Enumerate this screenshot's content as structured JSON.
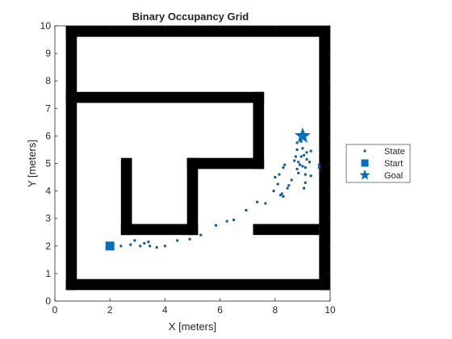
{
  "chart_data": {
    "type": "scatter",
    "title": "Binary Occupancy Grid",
    "xlabel": "X [meters]",
    "ylabel": "Y [meters]",
    "xlim": [
      0,
      10
    ],
    "ylim": [
      0,
      10
    ],
    "xticks": [
      "0",
      "2",
      "4",
      "6",
      "8",
      "10"
    ],
    "yticks": [
      "0",
      "1",
      "2",
      "3",
      "4",
      "5",
      "6",
      "7",
      "8",
      "9",
      "10"
    ],
    "grid": false,
    "legend_position": "outside-right",
    "obstacles": [
      {
        "x0": 0.4,
        "x1": 10,
        "y0": 9.6,
        "y1": 10
      },
      {
        "x0": 0.4,
        "x1": 10,
        "y0": 0.4,
        "y1": 0.8
      },
      {
        "x0": 0.4,
        "x1": 0.8,
        "y0": 0.4,
        "y1": 10
      },
      {
        "x0": 9.6,
        "x1": 10,
        "y0": 0.4,
        "y1": 10
      },
      {
        "x0": 0.4,
        "x1": 7.6,
        "y0": 7.2,
        "y1": 7.6
      },
      {
        "x0": 7.2,
        "x1": 7.6,
        "y0": 4.8,
        "y1": 7.6
      },
      {
        "x0": 4.8,
        "x1": 7.6,
        "y0": 4.8,
        "y1": 5.2
      },
      {
        "x0": 4.8,
        "x1": 5.2,
        "y0": 2.4,
        "y1": 5.2
      },
      {
        "x0": 2.4,
        "x1": 5.2,
        "y0": 2.4,
        "y1": 2.8
      },
      {
        "x0": 2.4,
        "x1": 2.8,
        "y0": 2.4,
        "y1": 5.2
      },
      {
        "x0": 7.2,
        "x1": 9.6,
        "y0": 2.4,
        "y1": 2.8
      }
    ],
    "series": [
      {
        "name": "State",
        "marker": "square-dot",
        "color": "#0e5a96",
        "points": [
          [
            2.4,
            2.0
          ],
          [
            2.75,
            2.05
          ],
          [
            2.9,
            2.2
          ],
          [
            3.1,
            2.0
          ],
          [
            3.25,
            2.1
          ],
          [
            3.4,
            2.15
          ],
          [
            3.45,
            2.0
          ],
          [
            3.7,
            1.95
          ],
          [
            4.0,
            2.0
          ],
          [
            4.45,
            2.2
          ],
          [
            4.9,
            2.25
          ],
          [
            5.3,
            2.4
          ],
          [
            5.85,
            2.75
          ],
          [
            6.25,
            2.9
          ],
          [
            6.5,
            2.95
          ],
          [
            6.95,
            3.3
          ],
          [
            7.35,
            3.6
          ],
          [
            7.65,
            3.55
          ],
          [
            7.95,
            4.0
          ],
          [
            8.0,
            4.5
          ],
          [
            8.1,
            4.25
          ],
          [
            8.15,
            4.6
          ],
          [
            8.2,
            3.85
          ],
          [
            8.25,
            3.9
          ],
          [
            8.3,
            4.85
          ],
          [
            8.3,
            3.8
          ],
          [
            8.35,
            4.95
          ],
          [
            8.45,
            4.1
          ],
          [
            8.5,
            4.2
          ],
          [
            8.6,
            4.4
          ],
          [
            8.7,
            5.1
          ],
          [
            8.75,
            5.25
          ],
          [
            8.8,
            5.5
          ],
          [
            8.8,
            5.75
          ],
          [
            8.8,
            4.8
          ],
          [
            8.85,
            4.65
          ],
          [
            8.85,
            5.05
          ],
          [
            8.9,
            4.95
          ],
          [
            8.95,
            5.8
          ],
          [
            8.95,
            5.25
          ],
          [
            9.0,
            5.55
          ],
          [
            9.0,
            4.9
          ],
          [
            9.05,
            5.3
          ],
          [
            9.05,
            4.1
          ],
          [
            9.1,
            4.3
          ],
          [
            9.1,
            4.6
          ],
          [
            9.1,
            4.85
          ],
          [
            9.15,
            5.15
          ],
          [
            9.15,
            5.4
          ],
          [
            9.25,
            5.05
          ],
          [
            9.3,
            5.45
          ],
          [
            9.3,
            4.55
          ],
          [
            9.6,
            4.85
          ],
          [
            9.6,
            4.95
          ]
        ]
      },
      {
        "name": "Start",
        "marker": "square",
        "color": "#0072bd",
        "points": [
          [
            2.0,
            2.0
          ]
        ]
      },
      {
        "name": "Goal",
        "marker": "pentagram",
        "color": "#0072bd",
        "points": [
          [
            9.0,
            6.0
          ]
        ]
      }
    ]
  }
}
